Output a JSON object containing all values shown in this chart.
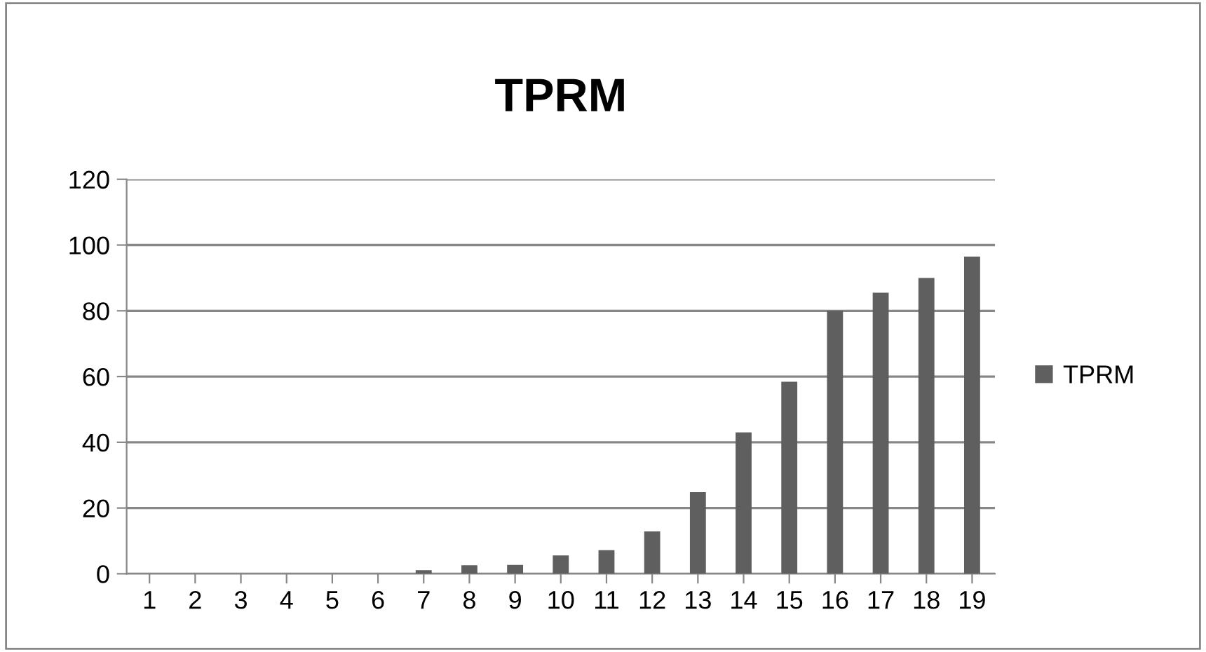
{
  "chart_data": {
    "type": "bar",
    "title": "TPRM",
    "categories": [
      "1",
      "2",
      "3",
      "4",
      "5",
      "6",
      "7",
      "8",
      "9",
      "10",
      "11",
      "12",
      "13",
      "14",
      "15",
      "16",
      "17",
      "18",
      "19"
    ],
    "series": [
      {
        "name": "TPRM",
        "color": "#5f5f5f",
        "values": [
          0,
          0,
          0,
          0,
          0,
          0,
          1.1,
          2.6,
          2.7,
          5.6,
          7.2,
          12.9,
          24.8,
          43,
          58.4,
          80,
          85.5,
          90,
          96.5
        ]
      }
    ],
    "ylim": [
      0,
      120
    ],
    "yticks": [
      0,
      20,
      40,
      60,
      80,
      100,
      120
    ],
    "grid": "y",
    "legend": "right"
  }
}
